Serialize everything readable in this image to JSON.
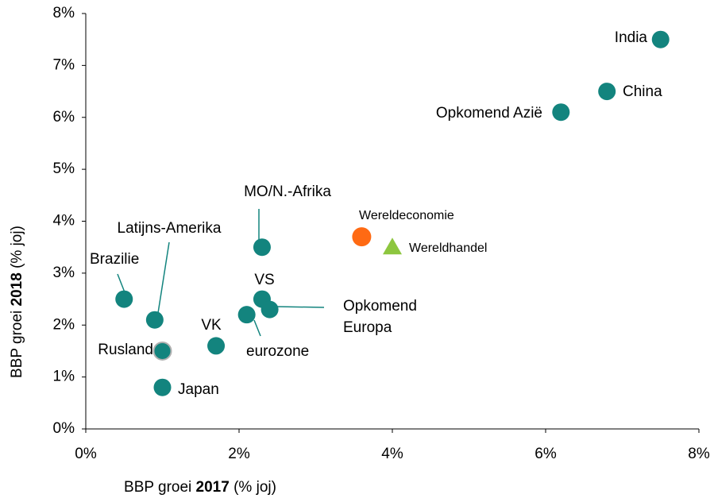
{
  "chart_data": {
    "type": "scatter",
    "x_label": {
      "prefix": "BBP groei ",
      "bold": "2017",
      "suffix": " (% joj)"
    },
    "y_label": {
      "prefix": "BBP groei ",
      "bold": "2018",
      "suffix": " (% joj)"
    },
    "xlim": [
      0,
      8
    ],
    "ylim": [
      0,
      8
    ],
    "xticks": [
      {
        "value": 0,
        "label": "0%"
      },
      {
        "value": 2,
        "label": "2%"
      },
      {
        "value": 4,
        "label": "4%"
      },
      {
        "value": 6,
        "label": "6%"
      },
      {
        "value": 8,
        "label": "8%"
      }
    ],
    "yticks": [
      {
        "value": 0,
        "label": "0%"
      },
      {
        "value": 1,
        "label": "1%"
      },
      {
        "value": 2,
        "label": "2%"
      },
      {
        "value": 3,
        "label": "3%"
      },
      {
        "value": 4,
        "label": "4%"
      },
      {
        "value": 5,
        "label": "5%"
      },
      {
        "value": 6,
        "label": "6%"
      },
      {
        "value": 7,
        "label": "7%"
      },
      {
        "value": 8,
        "label": "8%"
      }
    ],
    "color": "#13847e",
    "points": [
      {
        "label": "India",
        "x": 7.5,
        "y": 7.5
      },
      {
        "label": "China",
        "x": 6.8,
        "y": 6.5
      },
      {
        "label": "Opkomend Azië",
        "x": 6.2,
        "y": 6.1
      },
      {
        "label": "MO/N.-Afrika",
        "x": 2.3,
        "y": 3.5
      },
      {
        "label": "Wereldeconomie",
        "x": 3.6,
        "y": 3.7,
        "color": "#ff6a13"
      },
      {
        "label": "Wereldhandel",
        "x": 4.0,
        "y": 3.5,
        "color": "#8dc63f",
        "marker": "triangle"
      },
      {
        "label": "Brazilie",
        "x": 0.5,
        "y": 2.5
      },
      {
        "label": "Latijns-Amerika",
        "x": 0.9,
        "y": 2.1
      },
      {
        "label": "VS",
        "x": 2.3,
        "y": 2.5
      },
      {
        "label": "Opkomend Europa",
        "x": 2.4,
        "y": 2.3
      },
      {
        "label": "eurozone",
        "x": 2.1,
        "y": 2.2
      },
      {
        "label": "VK",
        "x": 1.7,
        "y": 1.6
      },
      {
        "label": "Rusland",
        "x": 1.0,
        "y": 1.5,
        "stroke": "#b0b0b0"
      },
      {
        "label": "Japan",
        "x": 1.0,
        "y": 0.8
      }
    ]
  }
}
